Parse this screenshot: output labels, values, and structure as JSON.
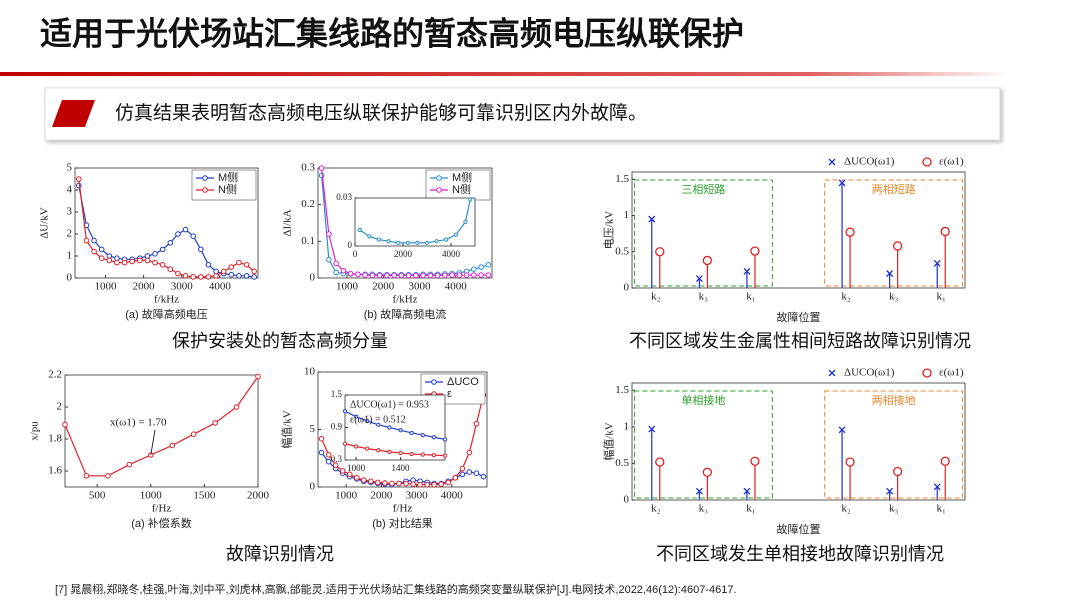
{
  "title": "适用于光伏场站汇集线路的暂态高频电压纵联保护",
  "banner": "仿真结果表明暂态高频电压纵联保护能够可靠识别区内外故障。",
  "captions": [
    "保护安装处的暂态高频分量",
    "不同区域发生金属性相间短路故障识别情况",
    "故障识别情况",
    "不同区域发生单相接地故障识别情况"
  ],
  "reference": "[7] 晁晨栩,郑晓冬,桂强,叶海,刘中平,刘虎林,高飘,邰能灵.适用于光伏场站汇集线路的高频突变量纵联保护[J].电网技术,2022,46(12):4607-4617.",
  "chart_data": [
    {
      "type": "line",
      "xlabel": "f/kHz",
      "ylabel": "ΔU/kV",
      "caption": "(a) 故障高频电压",
      "legend": "upper right",
      "xlim": [
        200,
        5000
      ],
      "ylim": [
        0,
        5
      ],
      "xticks": [
        1000,
        2000,
        3000,
        4000
      ],
      "yticks": [
        0,
        1,
        2,
        3,
        4,
        5
      ],
      "x": [
        300,
        500,
        700,
        900,
        1100,
        1300,
        1500,
        1700,
        1900,
        2100,
        2300,
        2500,
        2700,
        2900,
        3100,
        3300,
        3500,
        3700,
        3900,
        4100,
        4300,
        4500,
        4700,
        4900
      ],
      "series": [
        {
          "name": "M侧",
          "color": "#1f3fc0",
          "values": [
            4.2,
            2.4,
            1.7,
            1.3,
            1.0,
            0.9,
            0.85,
            0.85,
            0.9,
            1.0,
            1.1,
            1.3,
            1.6,
            2.0,
            2.2,
            1.9,
            1.3,
            0.6,
            0.3,
            0.2,
            0.15,
            0.1,
            0.1,
            0.05
          ]
        },
        {
          "name": "N侧",
          "color": "#e0202a",
          "values": [
            4.5,
            1.7,
            1.2,
            0.9,
            0.8,
            0.7,
            0.7,
            0.75,
            0.8,
            0.8,
            0.7,
            0.6,
            0.4,
            0.2,
            0.1,
            0.05,
            0.05,
            0.05,
            0.1,
            0.3,
            0.5,
            0.7,
            0.6,
            0.3
          ]
        }
      ]
    },
    {
      "type": "line",
      "xlabel": "f/kHz",
      "ylabel": "ΔI/kA",
      "caption": "(b) 故障高频电流",
      "legend": "upper right",
      "xlim": [
        200,
        5000
      ],
      "ylim": [
        0,
        0.3
      ],
      "xticks": [
        1000,
        2000,
        3000,
        4000
      ],
      "yticks": [
        0,
        0.1,
        0.2,
        0.3
      ],
      "x": [
        300,
        500,
        700,
        900,
        1100,
        1300,
        1500,
        1700,
        1900,
        2100,
        2300,
        2500,
        2700,
        2900,
        3100,
        3300,
        3500,
        3700,
        3900,
        4100,
        4300,
        4500,
        4700,
        4900
      ],
      "series": [
        {
          "name": "M侧",
          "color": "#2a8fc8",
          "values": [
            0.28,
            0.05,
            0.015,
            0.012,
            0.011,
            0.01,
            0.01,
            0.01,
            0.009,
            0.009,
            0.009,
            0.009,
            0.009,
            0.009,
            0.01,
            0.01,
            0.01,
            0.011,
            0.012,
            0.014,
            0.018,
            0.024,
            0.03,
            0.036
          ]
        },
        {
          "name": "N侧",
          "color": "#e020d0",
          "values": [
            0.3,
            0.12,
            0.04,
            0.02,
            0.012,
            0.01,
            0.008,
            0.007,
            0.007,
            0.007,
            0.007,
            0.007,
            0.007,
            0.007,
            0.007,
            0.007,
            0.007,
            0.007,
            0.008,
            0.008,
            0.008,
            0.008,
            0.008,
            0.008
          ]
        }
      ]
    },
    {
      "type": "line",
      "xlim": [
        0,
        5000
      ],
      "ylim": [
        0,
        0.03
      ],
      "xticks": [
        0,
        2000,
        4000
      ],
      "yticks": [
        0,
        0.03
      ],
      "x": [
        200,
        600,
        1000,
        1400,
        1800,
        2200,
        2600,
        3000,
        3400,
        3800,
        4200,
        4600,
        4800
      ],
      "series": [
        {
          "color": "#2a8fc8",
          "values": [
            0.01,
            0.006,
            0.004,
            0.003,
            0.002,
            0.002,
            0.002,
            0.002,
            0.003,
            0.004,
            0.007,
            0.015,
            0.029
          ]
        }
      ]
    },
    {
      "type": "line",
      "xlabel": "f/Hz",
      "ylabel": "x/pu",
      "caption": "(a) 补偿系数",
      "annotations": [
        "x(ω1) = 1.70"
      ],
      "xlim": [
        200,
        2000
      ],
      "ylim": [
        1.5,
        2.2
      ],
      "xticks": [
        500,
        1000,
        1500,
        2000
      ],
      "yticks": [
        1.6,
        1.8,
        2.0,
        2.2
      ],
      "x": [
        200,
        400,
        600,
        800,
        1000,
        1200,
        1400,
        1600,
        1800,
        2000
      ],
      "series": [
        {
          "color": "#e0202a",
          "values": [
            1.89,
            1.57,
            1.57,
            1.64,
            1.7,
            1.76,
            1.83,
            1.9,
            2.0,
            2.19
          ]
        }
      ]
    },
    {
      "type": "line",
      "xlabel": "f/Hz",
      "ylabel": "幅值/kV",
      "caption": "(b) 对比结果",
      "legend": "upper right",
      "xlim": [
        200,
        5000
      ],
      "ylim": [
        0,
        10
      ],
      "xticks": [
        1000,
        2000,
        3000,
        4000
      ],
      "yticks": [
        0,
        5,
        10
      ],
      "x": [
        300,
        500,
        700,
        900,
        1100,
        1300,
        1500,
        1700,
        1900,
        2100,
        2300,
        2500,
        2700,
        2900,
        3100,
        3300,
        3500,
        3700,
        3900,
        4100,
        4300,
        4500,
        4700,
        4900
      ],
      "series": [
        {
          "name": "ΔUCO",
          "color": "#2040d0",
          "values": [
            3.0,
            2.2,
            1.6,
            1.2,
            0.9,
            0.7,
            0.5,
            0.4,
            0.3,
            0.25,
            0.2,
            0.3,
            0.5,
            0.6,
            0.5,
            0.4,
            0.3,
            0.3,
            0.5,
            0.8,
            1.1,
            1.3,
            1.2,
            0.9
          ]
        },
        {
          "name": "ε",
          "color": "#e0202a",
          "values": [
            4.2,
            2.8,
            1.9,
            1.4,
            1.1,
            0.8,
            0.6,
            0.5,
            0.4,
            0.35,
            0.3,
            0.3,
            0.3,
            0.25,
            0.2,
            0.2,
            0.2,
            0.25,
            0.4,
            0.8,
            1.6,
            3.0,
            5.5,
            8.0
          ]
        }
      ]
    },
    {
      "type": "line",
      "annotations": [
        "ΔUCO(ω1) = 0.953",
        "ε(ω1) = 0.512"
      ],
      "xlim": [
        900,
        1800
      ],
      "ylim": [
        0.3,
        1.5
      ],
      "xticks": [
        1000,
        1400
      ],
      "yticks": [
        0.3,
        0.9,
        1.5
      ],
      "x": [
        900,
        1000,
        1100,
        1200,
        1300,
        1400,
        1500,
        1600,
        1700,
        1800
      ],
      "series": [
        {
          "color": "#2040d0",
          "values": [
            1.2,
            1.1,
            1.02,
            0.95,
            0.9,
            0.85,
            0.8,
            0.76,
            0.72,
            0.68
          ]
        },
        {
          "color": "#e0202a",
          "values": [
            0.6,
            0.55,
            0.51,
            0.48,
            0.45,
            0.43,
            0.41,
            0.4,
            0.39,
            0.38
          ]
        }
      ]
    },
    {
      "type": "stem",
      "xlabel": "故障位置",
      "ylabel": "电压/kV",
      "legend": "top",
      "ylim": [
        0,
        1.6
      ],
      "yticks": [
        0,
        0.5,
        1,
        1.5
      ],
      "categories": [
        "k₂",
        "k₃",
        "k₁",
        "k₂",
        "k₃",
        "k₁"
      ],
      "groups": [
        {
          "label": "三相短路",
          "color": "#2ca02c"
        },
        {
          "label": "两相短路",
          "color": "#e8862a"
        }
      ],
      "series": [
        {
          "name": "ΔUCO(ω1)",
          "color": "#1a2fd0",
          "marker": "x",
          "values": [
            0.95,
            0.13,
            0.23,
            1.45,
            0.2,
            0.34
          ]
        },
        {
          "name": "ε(ω1)",
          "color": "#e02020",
          "marker": "o",
          "values": [
            0.5,
            0.38,
            0.51,
            0.77,
            0.58,
            0.78
          ]
        }
      ]
    },
    {
      "type": "stem",
      "xlabel": "故障位置",
      "ylabel": "幅值/kV",
      "legend": "top",
      "ylim": [
        0,
        1.6
      ],
      "yticks": [
        0,
        0.5,
        1,
        1.5
      ],
      "categories": [
        "k₂",
        "k₃",
        "k₁",
        "k₂",
        "k₃",
        "k₁"
      ],
      "groups": [
        {
          "label": "单相接地",
          "color": "#2ca02c"
        },
        {
          "label": "两相接地",
          "color": "#e8862a"
        }
      ],
      "series": [
        {
          "name": "ΔUCO(ω1)",
          "color": "#1a2fd0",
          "marker": "x",
          "values": [
            0.97,
            0.12,
            0.12,
            0.96,
            0.12,
            0.18
          ]
        },
        {
          "name": "ε(ω1)",
          "color": "#e02020",
          "marker": "o",
          "values": [
            0.52,
            0.38,
            0.53,
            0.52,
            0.39,
            0.53
          ]
        }
      ]
    }
  ]
}
